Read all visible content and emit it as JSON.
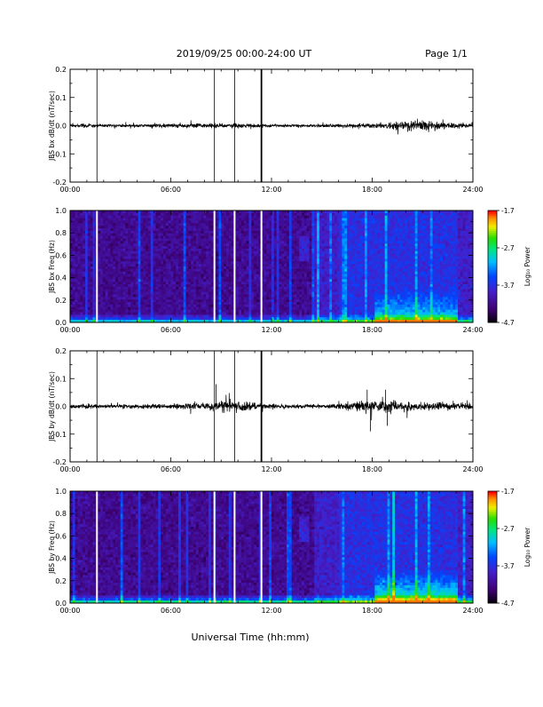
{
  "header": {
    "title": "2019/09/25  00:00-24:00 UT",
    "page": "Page 1/1"
  },
  "footer": {
    "xlabel": "Universal Time (hh:mm)"
  },
  "colorbar": {
    "label": "Log₁₀ Power",
    "ticks": [
      "-1.7",
      "-2.7",
      "-3.7",
      "-4.7"
    ],
    "tick_values": [
      -1.7,
      -2.7,
      -3.7,
      -4.7
    ],
    "range": [
      -4.7,
      -1.7
    ]
  },
  "chart_data": [
    {
      "type": "line",
      "ylabel": "JBS bx dB/dt (nT/sec)",
      "x_ticks": [
        "00:00",
        "06:00",
        "12:00",
        "18:00",
        "24:00"
      ],
      "xlim": [
        0,
        24
      ],
      "y_ticks": [
        "0.2",
        "0.1",
        "0.0",
        "-0.1",
        "-0.2"
      ],
      "y_tick_values": [
        0.2,
        0.1,
        0.0,
        -0.1,
        -0.2
      ],
      "ylim": [
        -0.2,
        0.2
      ],
      "spike_hours": [
        1.6,
        8.6,
        9.8,
        11.4
      ],
      "envelope": {
        "hours": [
          0,
          2,
          4,
          6,
          8,
          10,
          11.5,
          14,
          16,
          18,
          19,
          20,
          21,
          22,
          24
        ],
        "amplitude": [
          0.01,
          0.008,
          0.008,
          0.012,
          0.012,
          0.012,
          0.008,
          0.006,
          0.01,
          0.012,
          0.02,
          0.025,
          0.03,
          0.02,
          0.012
        ]
      }
    },
    {
      "type": "heatmap",
      "ylabel": "JBS bx Freq (Hz)",
      "x_ticks": [
        "00:00",
        "06:00",
        "12:00",
        "18:00",
        "24:00"
      ],
      "xlim": [
        0,
        24
      ],
      "y_ticks": [
        "1.0",
        "0.8",
        "0.6",
        "0.4",
        "0.2",
        "0.0"
      ],
      "y_tick_values": [
        1.0,
        0.8,
        0.6,
        0.4,
        0.2,
        0.0
      ],
      "ylim": [
        0,
        1
      ],
      "zlim": [
        -4.7,
        -1.7
      ],
      "gap_hours": [
        1.6,
        8.6,
        9.8,
        11.4
      ]
    },
    {
      "type": "line",
      "ylabel": "JBS by dB/dt (nT/sec)",
      "x_ticks": [
        "00:00",
        "06:00",
        "12:00",
        "18:00",
        "24:00"
      ],
      "xlim": [
        0,
        24
      ],
      "y_ticks": [
        "0.2",
        "0.1",
        "0.0",
        "-0.1",
        "-0.2"
      ],
      "y_tick_values": [
        0.2,
        0.1,
        0.0,
        -0.1,
        -0.2
      ],
      "ylim": [
        -0.2,
        0.2
      ],
      "spike_hours": [
        1.6,
        8.6,
        9.8,
        11.4
      ],
      "envelope": {
        "hours": [
          0,
          2,
          4,
          6,
          8,
          9,
          10,
          11.5,
          14,
          16,
          17.5,
          18,
          19,
          20,
          21,
          22,
          24
        ],
        "amplitude": [
          0.012,
          0.01,
          0.012,
          0.015,
          0.018,
          0.03,
          0.03,
          0.012,
          0.01,
          0.015,
          0.035,
          0.04,
          0.03,
          0.025,
          0.02,
          0.02,
          0.015
        ]
      },
      "events": [
        {
          "hour": 8.7,
          "value": 0.08
        },
        {
          "hour": 17.7,
          "value": 0.06
        },
        {
          "hour": 17.9,
          "value": -0.09
        },
        {
          "hour": 18.8,
          "value": 0.06
        },
        {
          "hour": 18.9,
          "value": -0.07
        }
      ]
    },
    {
      "type": "heatmap",
      "ylabel": "JBS by Freq (Hz)",
      "x_ticks": [
        "00:00",
        "06:00",
        "12:00",
        "18:00",
        "24:00"
      ],
      "xlim": [
        0,
        24
      ],
      "y_ticks": [
        "1.0",
        "0.8",
        "0.6",
        "0.4",
        "0.2",
        "0.0"
      ],
      "y_tick_values": [
        1.0,
        0.8,
        0.6,
        0.4,
        0.2,
        0.0
      ],
      "ylim": [
        0,
        1
      ],
      "zlim": [
        -4.7,
        -1.7
      ],
      "gap_hours": [
        1.6,
        8.6,
        9.8,
        11.4
      ]
    }
  ]
}
